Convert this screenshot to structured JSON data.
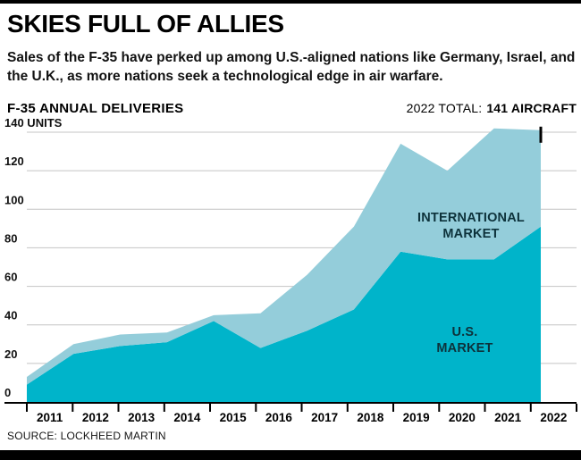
{
  "page": {
    "title": "SKIES FULL OF ALLIES",
    "subtitle": "Sales of the F-35 have perked up among U.S.-aligned nations like Germany, Israel, and the U.K., as more nations seek a technological edge in air warfare.",
    "source": "SOURCE: LOCKHEED MARTIN"
  },
  "chart_data": {
    "type": "area",
    "stacked": true,
    "title": "F-35 ANNUAL DELIVERIES",
    "annotation": {
      "prefix": "2022 TOTAL:",
      "value": "141 AIRCRAFT"
    },
    "x": [
      2011,
      2012,
      2013,
      2014,
      2015,
      2016,
      2017,
      2018,
      2019,
      2020,
      2021,
      2022
    ],
    "series": [
      {
        "name": "U.S. MARKET",
        "label_lines": [
          "U.S.",
          "MARKET"
        ],
        "color": "#00b4ca",
        "values": [
          9,
          25,
          29,
          31,
          42,
          28,
          37,
          48,
          78,
          74,
          74,
          91
        ]
      },
      {
        "name": "INTERNATIONAL MARKET",
        "label_lines": [
          "INTERNATIONAL",
          "MARKET"
        ],
        "color": "#94cdda",
        "values": [
          4,
          5,
          6,
          5,
          3,
          18,
          29,
          43,
          56,
          46,
          68,
          50
        ]
      }
    ],
    "totals": [
      13,
      30,
      35,
      36,
      45,
      46,
      66,
      91,
      134,
      120,
      142,
      141
    ],
    "ylim": [
      0,
      140
    ],
    "ylabel": "UNITS",
    "xlabel": "",
    "grid": true,
    "legend_position": "on-chart",
    "yticks": [
      {
        "value": 0,
        "label": "0"
      },
      {
        "value": 20,
        "label": "20"
      },
      {
        "value": 40,
        "label": "40"
      },
      {
        "value": 60,
        "label": "60"
      },
      {
        "value": 80,
        "label": "80"
      },
      {
        "value": 100,
        "label": "100"
      },
      {
        "value": 120,
        "label": "120"
      },
      {
        "value": 140,
        "label": "140 UNITS"
      }
    ]
  },
  "colors": {
    "us_market": "#00b4ca",
    "international_market": "#94cdda",
    "gridline": "#c4c4c4",
    "axis": "#000000",
    "text": "#000000"
  }
}
